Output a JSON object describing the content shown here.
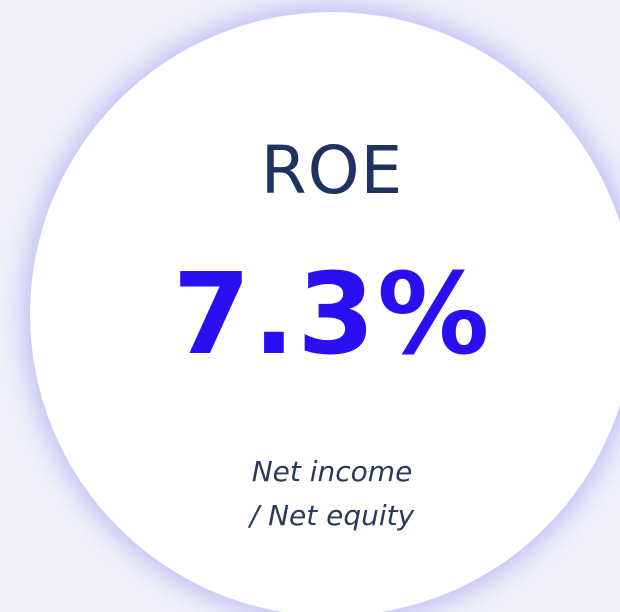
{
  "card": {
    "title": "ROE",
    "value": "7.3%",
    "description": [
      "Net income",
      "/ Net equity"
    ]
  }
}
